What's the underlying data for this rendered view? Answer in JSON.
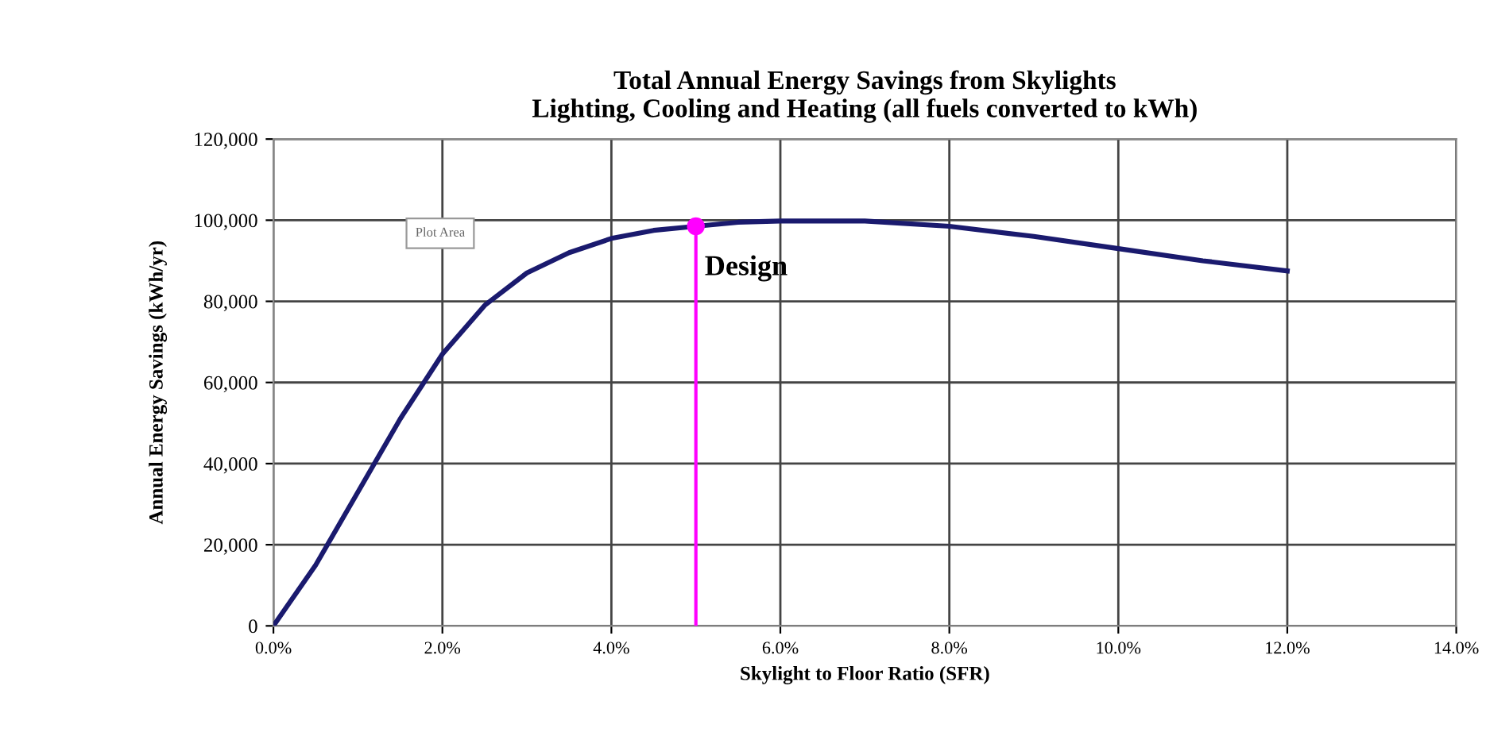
{
  "chart_data": {
    "type": "line",
    "title": "Total Annual Energy Savings from Skylights\nLighting, Cooling and Heating (all fuels converted to kWh)",
    "xlabel": "Skylight to Floor Ratio (SFR)",
    "ylabel": "Annual Energy Savings (kWh/yr)",
    "series": [
      {
        "color": "#1a1a6e",
        "x": [
          0,
          0.5,
          1,
          1.5,
          2,
          2.5,
          3,
          3.5,
          4,
          4.5,
          5,
          5.5,
          6,
          7,
          8,
          9,
          10,
          11,
          12
        ],
        "values": [
          0,
          15000,
          33000,
          51000,
          67000,
          79000,
          87000,
          92000,
          95500,
          97500,
          98500,
          99500,
          99800,
          99800,
          98500,
          96000,
          93000,
          90000,
          87500
        ]
      },
      {
        "type": "line",
        "color": "#ff00ff",
        "x": [
          5,
          5
        ],
        "values": [
          0,
          98500
        ]
      },
      {
        "type": "scatter",
        "color": "#ff00ff",
        "marker": "circle",
        "x": [
          5
        ],
        "values": [
          98500
        ]
      }
    ],
    "annotations": [
      {
        "text": "Design",
        "x": 5,
        "y": 98500
      },
      "Plot Area"
    ],
    "xlim": [
      0,
      14
    ],
    "ylim": [
      0,
      120000
    ],
    "xticks": [
      {
        "value": 0,
        "label": "0.0%"
      },
      {
        "value": 2,
        "label": "2.0%"
      },
      {
        "value": 4,
        "label": "4.0%"
      },
      {
        "value": 6,
        "label": "6.0%"
      },
      {
        "value": 8,
        "label": "8.0%"
      },
      {
        "value": 10,
        "label": "10.0%"
      },
      {
        "value": 12,
        "label": "12.0%"
      },
      {
        "value": 14,
        "label": "14.0%"
      }
    ],
    "yticks": [
      {
        "value": 0,
        "label": "0"
      },
      {
        "value": 20000,
        "label": "20,000"
      },
      {
        "value": 40000,
        "label": "40,000"
      },
      {
        "value": 60000,
        "label": "60,000"
      },
      {
        "value": 80000,
        "label": "80,000"
      },
      {
        "value": 100000,
        "label": "100,000"
      },
      {
        "value": 120000,
        "label": "120,000"
      }
    ],
    "grid": true,
    "legend": false
  }
}
